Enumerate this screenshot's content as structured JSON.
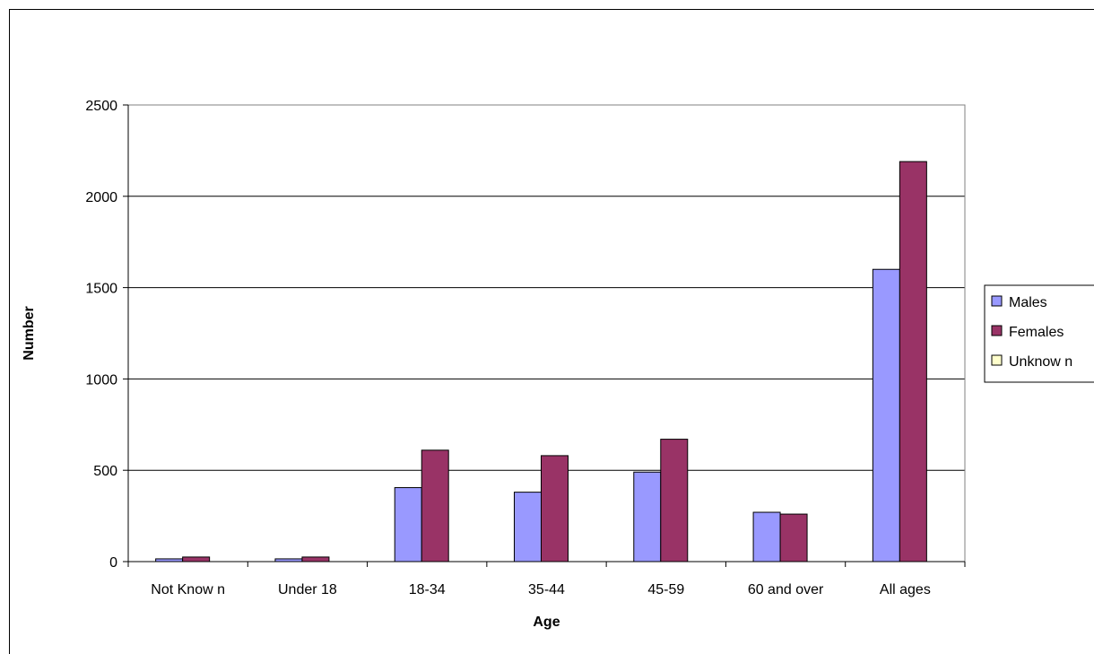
{
  "chart_data": {
    "type": "bar",
    "title": "",
    "xlabel": "Age",
    "ylabel": "Number",
    "categories": [
      "Not Know n",
      "Under 18",
      "18-34",
      "35-44",
      "45-59",
      "60 and over",
      "All ages"
    ],
    "series": [
      {
        "name": "Males",
        "color": "#9999FF",
        "values": [
          15,
          15,
          405,
          380,
          490,
          270,
          1600
        ]
      },
      {
        "name": "Females",
        "color": "#993366",
        "values": [
          25,
          25,
          610,
          580,
          670,
          260,
          2190
        ]
      },
      {
        "name": "Unknow n",
        "color": "#FFFFCC",
        "values": [
          0,
          0,
          0,
          0,
          0,
          0,
          0
        ]
      }
    ],
    "ylim": [
      0,
      2500
    ],
    "yticks": [
      0,
      500,
      1000,
      1500,
      2000,
      2500
    ],
    "grid": true,
    "legend": "right"
  }
}
